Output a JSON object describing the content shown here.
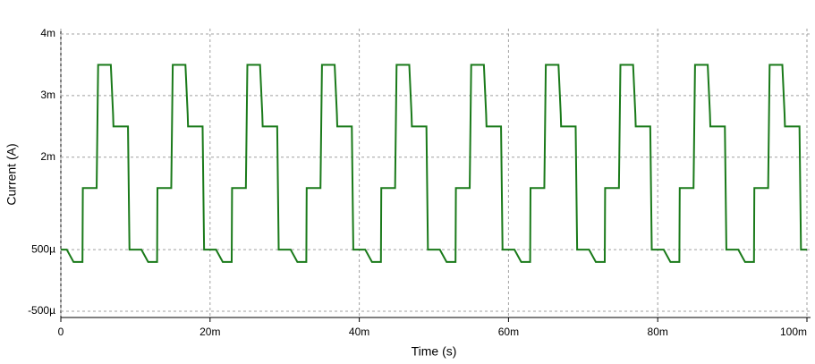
{
  "chart_data": {
    "type": "line",
    "xlabel": "Time (s)",
    "ylabel": "Current (A)",
    "x": [
      0,
      0.0008,
      0.0017,
      0.0029,
      0.00295,
      0.0048,
      0.005,
      0.0067,
      0.007,
      0.00705,
      0.009,
      0.0092,
      0.01,
      0.0108,
      0.0117,
      0.0129,
      0.01295,
      0.0148,
      0.015,
      0.0167,
      0.017,
      0.01705,
      0.019,
      0.0192,
      0.02,
      0.0208,
      0.0217,
      0.0229,
      0.02295,
      0.0248,
      0.025,
      0.0267,
      0.027,
      0.02705,
      0.029,
      0.0292,
      0.03,
      0.0308,
      0.0317,
      0.0329,
      0.03295,
      0.0348,
      0.035,
      0.0367,
      0.037,
      0.03705,
      0.039,
      0.0392,
      0.04,
      0.0408,
      0.0417,
      0.0429,
      0.04295,
      0.0448,
      0.045,
      0.0467,
      0.047,
      0.04705,
      0.049,
      0.0492,
      0.05,
      0.0508,
      0.0517,
      0.0529,
      0.05295,
      0.0548,
      0.055,
      0.0567,
      0.057,
      0.05705,
      0.059,
      0.0592,
      0.06,
      0.0608,
      0.0617,
      0.0629,
      0.06295,
      0.0648,
      0.065,
      0.0667,
      0.067,
      0.06705,
      0.069,
      0.0692,
      0.07,
      0.0708,
      0.0717,
      0.0729,
      0.07295,
      0.0748,
      0.075,
      0.0767,
      0.077,
      0.07705,
      0.079,
      0.0792,
      0.08,
      0.0808,
      0.0817,
      0.0829,
      0.08295,
      0.0848,
      0.085,
      0.0867,
      0.087,
      0.08705,
      0.089,
      0.0892,
      0.09,
      0.0908,
      0.0917,
      0.0929,
      0.09295,
      0.0948,
      0.095,
      0.0967,
      0.097,
      0.09705,
      0.099,
      0.0992,
      0.1
    ],
    "series": [
      {
        "color": "#1a7a1a",
        "values": [
          0.0005,
          0.0005,
          0.0003,
          0.0003,
          0.0015,
          0.0015,
          0.0035,
          0.0035,
          0.0027,
          0.0025,
          0.0025,
          0.0005,
          0.0005,
          0.0005,
          0.0003,
          0.0003,
          0.0015,
          0.0015,
          0.0035,
          0.0035,
          0.0027,
          0.0025,
          0.0025,
          0.0005,
          0.0005,
          0.0005,
          0.0003,
          0.0003,
          0.0015,
          0.0015,
          0.0035,
          0.0035,
          0.0027,
          0.0025,
          0.0025,
          0.0005,
          0.0005,
          0.0005,
          0.0003,
          0.0003,
          0.0015,
          0.0015,
          0.0035,
          0.0035,
          0.0027,
          0.0025,
          0.0025,
          0.0005,
          0.0005,
          0.0005,
          0.0003,
          0.0003,
          0.0015,
          0.0015,
          0.0035,
          0.0035,
          0.0027,
          0.0025,
          0.0025,
          0.0005,
          0.0005,
          0.0005,
          0.0003,
          0.0003,
          0.0015,
          0.0015,
          0.0035,
          0.0035,
          0.0027,
          0.0025,
          0.0025,
          0.0005,
          0.0005,
          0.0005,
          0.0003,
          0.0003,
          0.0015,
          0.0015,
          0.0035,
          0.0035,
          0.0027,
          0.0025,
          0.0025,
          0.0005,
          0.0005,
          0.0005,
          0.0003,
          0.0003,
          0.0015,
          0.0015,
          0.0035,
          0.0035,
          0.0027,
          0.0025,
          0.0025,
          0.0005,
          0.0005,
          0.0005,
          0.0003,
          0.0003,
          0.0015,
          0.0015,
          0.0035,
          0.0035,
          0.0027,
          0.0025,
          0.0025,
          0.0005,
          0.0005,
          0.0005,
          0.0003,
          0.0003,
          0.0015,
          0.0015,
          0.0035,
          0.0035,
          0.0027,
          0.0025,
          0.0025,
          0.0005,
          0.0005
        ]
      }
    ],
    "xlim": [
      0,
      0.1
    ],
    "xticks": [
      0,
      {
        "value": 0.02,
        "label": "20m"
      },
      {
        "value": 0.04,
        "label": "40m"
      },
      {
        "value": 0.06,
        "label": "60m"
      },
      {
        "value": 0.08,
        "label": "80m"
      },
      {
        "value": 0.1,
        "label": "100m"
      }
    ],
    "ylim": [
      -0.0005,
      0.004
    ],
    "yticks": [
      {
        "value": 0.004,
        "label": "4m"
      },
      {
        "value": 0.003,
        "label": "3m"
      },
      {
        "value": 0.002,
        "label": "2m"
      },
      {
        "value": 0.0005,
        "label": "500µ"
      },
      {
        "value": -0.0005,
        "label": "-500µ"
      }
    ],
    "grid": true
  }
}
